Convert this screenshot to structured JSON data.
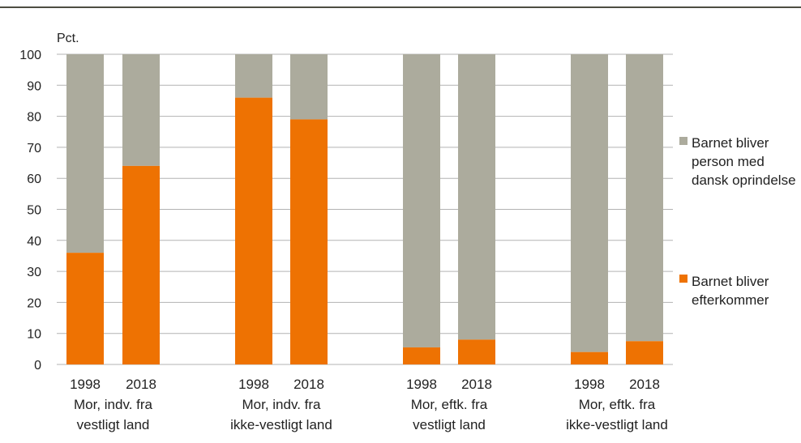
{
  "colors": {
    "series_origin": "#ACAB9D",
    "series_descendant": "#EE7202",
    "grid": "#B3B3B3",
    "top_rule": "#4D4D42",
    "text": "#222222"
  },
  "chart_data": {
    "type": "bar",
    "stacked": true,
    "ylabel": "Pct.",
    "ylim": [
      0,
      100
    ],
    "yticks": [
      0,
      10,
      20,
      30,
      40,
      50,
      60,
      70,
      80,
      90,
      100
    ],
    "grid": true,
    "legend_position": "right",
    "groups": [
      {
        "label_lines": [
          "Mor, indv. fra",
          "vestligt land"
        ],
        "bars": [
          {
            "year": "1998",
            "descendant": 36,
            "origin": 64
          },
          {
            "year": "2018",
            "descendant": 64,
            "origin": 36
          }
        ]
      },
      {
        "label_lines": [
          "Mor, indv. fra",
          "ikke-vestligt land"
        ],
        "bars": [
          {
            "year": "1998",
            "descendant": 86,
            "origin": 14
          },
          {
            "year": "2018",
            "descendant": 79,
            "origin": 21
          }
        ]
      },
      {
        "label_lines": [
          "Mor, eftk. fra",
          "vestligt land"
        ],
        "bars": [
          {
            "year": "1998",
            "descendant": 5.5,
            "origin": 94.5
          },
          {
            "year": "2018",
            "descendant": 8,
            "origin": 92
          }
        ]
      },
      {
        "label_lines": [
          "Mor, eftk. fra",
          "ikke-vestligt land"
        ],
        "bars": [
          {
            "year": "1998",
            "descendant": 4,
            "origin": 96
          },
          {
            "year": "2018",
            "descendant": 7.5,
            "origin": 92.5
          }
        ]
      }
    ],
    "series": [
      {
        "key": "origin",
        "name_lines": [
          "Barnet bliver",
          "person med",
          "dansk oprindelse"
        ]
      },
      {
        "key": "descendant",
        "name_lines": [
          "Barnet bliver",
          "efterkommer"
        ]
      }
    ]
  }
}
